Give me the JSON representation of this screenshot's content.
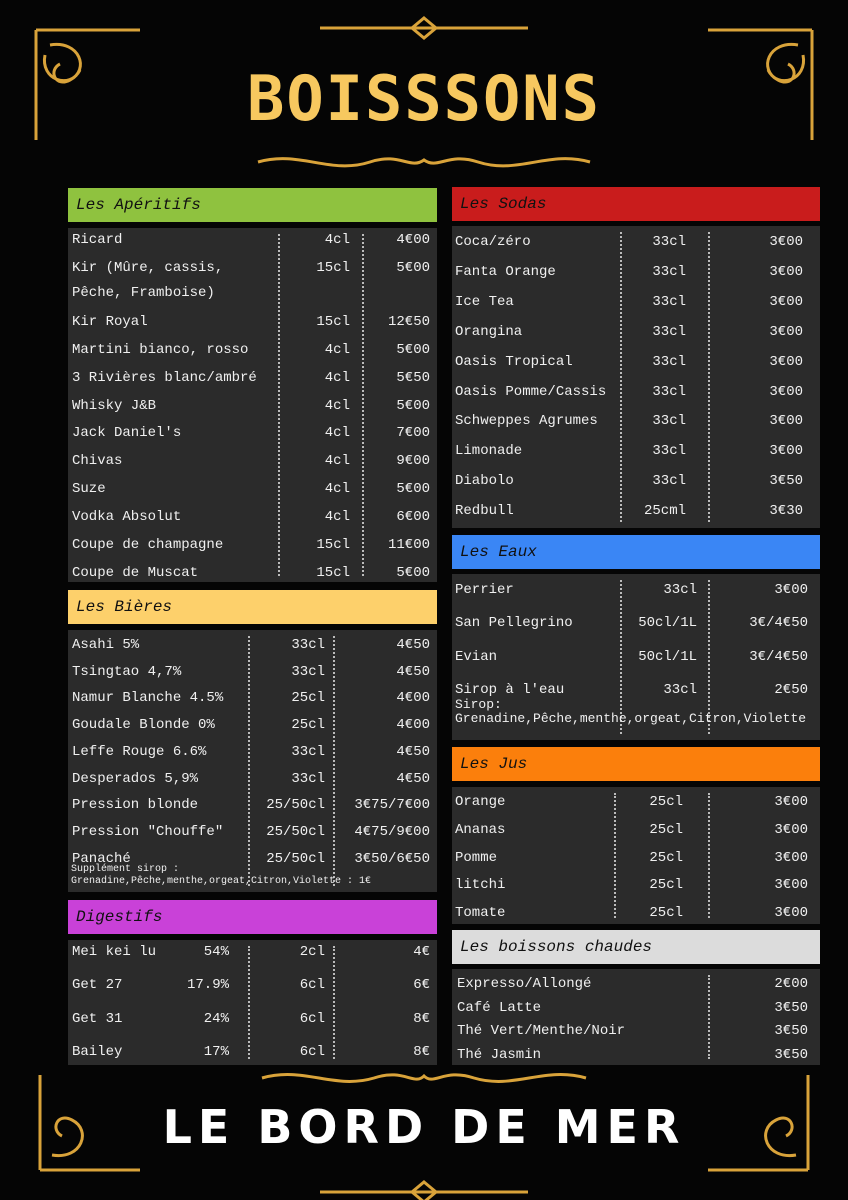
{
  "title": "BOISSSONS",
  "footer": "LE BORD DE MER",
  "sections": [
    {
      "title": "Les Apéritifs",
      "color": "#8fc23f",
      "rows": [
        [
          "Ricard",
          "4cl",
          "4€00"
        ],
        [
          "Kir (Mûre, cassis, Pêche, Framboise)",
          "15cl",
          "5€00"
        ],
        [
          "Kir Royal",
          "15cl",
          "12€50"
        ],
        [
          "Martini bianco, rosso",
          "4cl",
          "5€00"
        ],
        [
          "3 Rivières blanc/ambré",
          "4cl",
          "5€50"
        ],
        [
          "Whisky J&B",
          "4cl",
          "5€00"
        ],
        [
          "Jack Daniel's",
          "4cl",
          "7€00"
        ],
        [
          "Chivas",
          "4cl",
          "9€00"
        ],
        [
          "Suze",
          "4cl",
          "5€00"
        ],
        [
          "Vodka Absolut",
          "4cl",
          "6€00"
        ],
        [
          "Coupe de champagne",
          "15cl",
          "11€00"
        ],
        [
          "Coupe de Muscat",
          "15cl",
          "5€00"
        ]
      ]
    },
    {
      "title": "Les Bières",
      "color": "#fdd06b",
      "rows": [
        [
          "Asahi 5%",
          "33cl",
          "4€50"
        ],
        [
          "Tsingtao 4,7%",
          "33cl",
          "4€50"
        ],
        [
          "Namur Blanche 4.5%",
          "25cl",
          "4€00"
        ],
        [
          "Goudale Blonde 0%",
          "25cl",
          "4€00"
        ],
        [
          "Leffe Rouge 6.6%",
          "33cl",
          "4€50"
        ],
        [
          "Desperados 5,9%",
          "33cl",
          "4€50"
        ],
        [
          "Pression blonde",
          "25/50cl",
          "3€75/7€00"
        ],
        [
          "Pression \"Chouffe\"",
          "25/50cl",
          "4€75/9€00"
        ],
        [
          "Panaché",
          "25/50cl",
          "3€50/6€50"
        ]
      ],
      "note": [
        "Supplément sirop :",
        "Grenadine,Pêche,menthe,orgeat,Citron,Violette : 1€"
      ]
    },
    {
      "title": "Digestifs",
      "color": "#c941d8",
      "rows": [
        [
          "Mei kei lu",
          "54%",
          "2cl",
          "4€"
        ],
        [
          "Get 27",
          "17.9%",
          "6cl",
          "6€"
        ],
        [
          "Get 31",
          "24%",
          "6cl",
          "8€"
        ],
        [
          "Bailey",
          "17%",
          "6cl",
          "8€"
        ]
      ]
    },
    {
      "title": "Les Sodas",
      "color": "#c91c1c",
      "rows": [
        [
          "Coca/zéro",
          "33cl",
          "3€00"
        ],
        [
          "Fanta Orange",
          "33cl",
          "3€00"
        ],
        [
          "Ice Tea",
          "33cl",
          "3€00"
        ],
        [
          "Orangina",
          "33cl",
          "3€00"
        ],
        [
          "Oasis Tropical",
          "33cl",
          "3€00"
        ],
        [
          "Oasis Pomme/Cassis",
          "33cl",
          "3€00"
        ],
        [
          "Schweppes Agrumes",
          "33cl",
          "3€00"
        ],
        [
          "Limonade",
          "33cl",
          "3€00"
        ],
        [
          "Diabolo",
          "33cl",
          "3€50"
        ],
        [
          "Redbull",
          "25cml",
          "3€30"
        ]
      ]
    },
    {
      "title": "Les Eaux",
      "color": "#3a86f5",
      "rows": [
        [
          "Perrier",
          "33cl",
          "3€00"
        ],
        [
          "San Pellegrino",
          "50cl/1L",
          "3€/4€50"
        ],
        [
          "Evian",
          "50cl/1L",
          "3€/4€50"
        ],
        [
          "Sirop à l'eau",
          "33cl",
          "2€50"
        ]
      ],
      "note": [
        "Sirop:",
        "Grenadine,Pêche,menthe,orgeat,Citron,Violette"
      ]
    },
    {
      "title": "Les Jus",
      "color": "#fb7f0c",
      "rows": [
        [
          "Orange",
          "25cl",
          "3€00"
        ],
        [
          "Ananas",
          "25cl",
          "3€00"
        ],
        [
          "Pomme",
          "25cl",
          "3€00"
        ],
        [
          "litchi",
          "25cl",
          "3€00"
        ],
        [
          "Tomate",
          "25cl",
          "3€00"
        ]
      ]
    },
    {
      "title": "Les boissons chaudes",
      "color": "#dcdcdc",
      "rows": [
        [
          "Expresso/Allongé",
          "2€00"
        ],
        [
          "Café Latte",
          "3€50"
        ],
        [
          "Thé Vert/Menthe/Noir",
          "3€50"
        ],
        [
          "Thé Jasmin",
          "3€50"
        ]
      ]
    }
  ]
}
